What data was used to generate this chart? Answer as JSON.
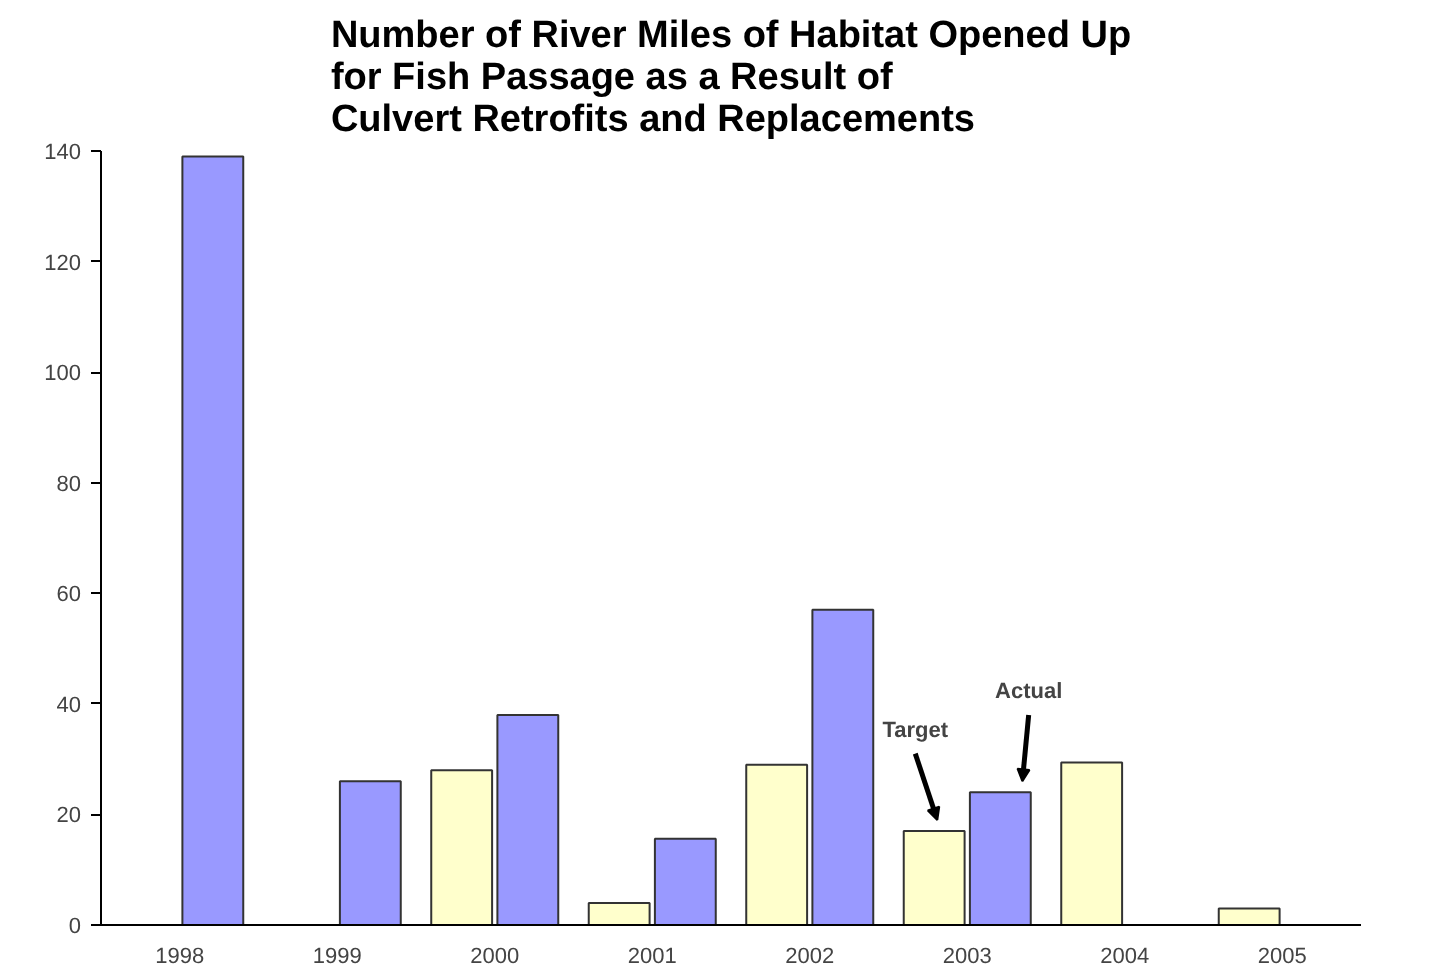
{
  "chart_data": {
    "type": "bar",
    "title": "Number of River Miles of Habitat Opened Up\nfor Fish Passage as a Result of\nCulvert Retrofits and Replacements",
    "categories": [
      "1998",
      "1999",
      "2000",
      "2001",
      "2002",
      "2003",
      "2004",
      "2005"
    ],
    "series": [
      {
        "name": "Target",
        "color": "#ffffcc",
        "values": [
          null,
          null,
          28,
          4,
          29,
          17,
          29.4,
          3
        ]
      },
      {
        "name": "Actual",
        "color": "#9999ff",
        "values": [
          139,
          26,
          38,
          15.6,
          57,
          24,
          null,
          null
        ]
      }
    ],
    "ylim": [
      0,
      140
    ],
    "yticks": [
      0,
      20,
      40,
      60,
      80,
      100,
      120,
      140
    ],
    "grid": false
  }
}
